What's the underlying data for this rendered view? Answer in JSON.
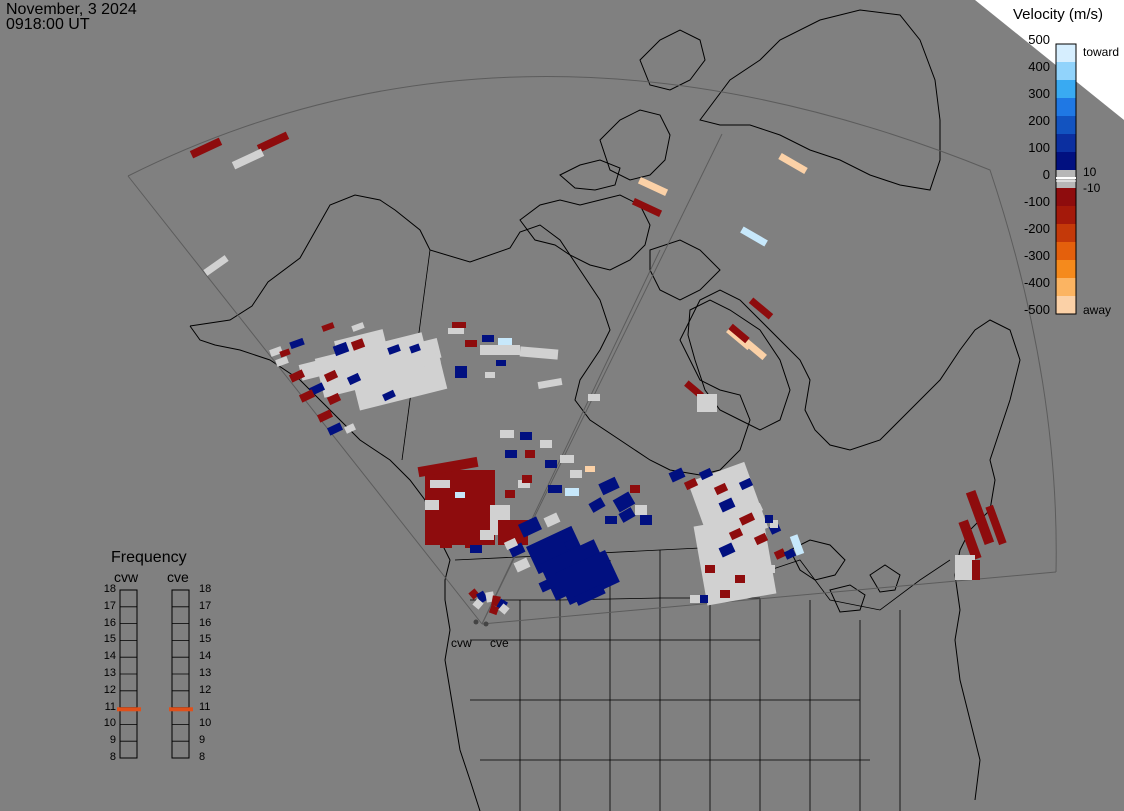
{
  "header": {
    "date": "November, 3 2024",
    "time": "0918:00 UT"
  },
  "velocity_scale": {
    "title": "Velocity (m/s)",
    "ticks": [
      "500",
      "400",
      "300",
      "200",
      "100",
      "0",
      "-100",
      "-200",
      "-300",
      "-400",
      "-500"
    ],
    "inner_ticks": [
      "10",
      "-10"
    ],
    "toward_label": "toward",
    "away_label": "away",
    "colors": [
      "#d6eefe",
      "#91d3fb",
      "#39aaf2",
      "#1f78e4",
      "#1253c0",
      "#0b2fa0",
      "#011080",
      "#b7b7b7",
      "#8e0c0d",
      "#a4190a",
      "#c43909",
      "#e4600c",
      "#f58a1c",
      "#fbb462",
      "#fbd1a7"
    ]
  },
  "frequency": {
    "title": "Frequency",
    "radars": [
      "cvw",
      "cve"
    ],
    "ticks": [
      "18",
      "17",
      "16",
      "15",
      "14",
      "13",
      "12",
      "11",
      "10",
      "9",
      "8"
    ],
    "values_mhz": [
      10.9,
      10.9
    ],
    "indicator_color": "#e0501a"
  },
  "map": {
    "background": "#808080",
    "ground_scatter_color": "#d1d1d1",
    "site_labels": [
      "cvw",
      "cve"
    ]
  }
}
